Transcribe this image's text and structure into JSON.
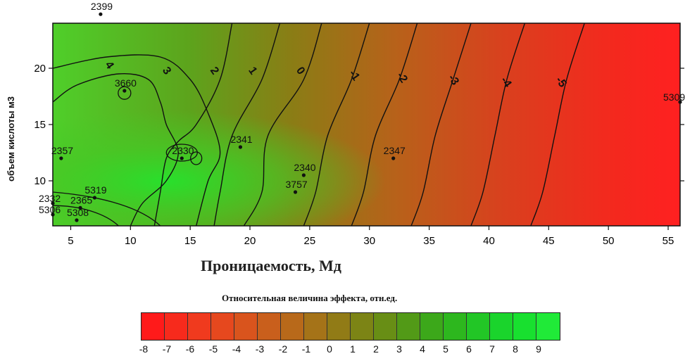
{
  "chart_data": {
    "type": "contour",
    "xlabel": "Проницаемость, Мд",
    "ylabel": "объем кислоты м3",
    "xlim": [
      3.5,
      56
    ],
    "ylim": [
      6,
      24
    ],
    "x_ticks": [
      "5",
      "10",
      "15",
      "20",
      "25",
      "30",
      "35",
      "40",
      "45",
      "50",
      "55"
    ],
    "y_ticks": [
      "10",
      "15",
      "20"
    ],
    "contours": [
      {
        "label": "-5",
        "points": [
          [
            48,
            24
          ],
          [
            46.5,
            19
          ],
          [
            45.5,
            14
          ],
          [
            44.5,
            9
          ],
          [
            43.5,
            6
          ]
        ]
      },
      {
        "label": "-4",
        "points": [
          [
            43,
            24
          ],
          [
            41.5,
            19
          ],
          [
            40.5,
            14
          ],
          [
            39.5,
            9
          ],
          [
            38.5,
            6
          ]
        ]
      },
      {
        "label": "-3",
        "points": [
          [
            38.5,
            24
          ],
          [
            37,
            19
          ],
          [
            35.5,
            14
          ],
          [
            34.5,
            9
          ],
          [
            33.5,
            6
          ]
        ]
      },
      {
        "label": "-2",
        "points": [
          [
            34,
            24
          ],
          [
            32.5,
            19
          ],
          [
            30.5,
            14
          ],
          [
            29.5,
            9
          ],
          [
            28.5,
            6
          ]
        ]
      },
      {
        "label": "-1",
        "points": [
          [
            30,
            24
          ],
          [
            28.5,
            19
          ],
          [
            26.5,
            14
          ],
          [
            25.5,
            9
          ],
          [
            24.5,
            6
          ]
        ]
      },
      {
        "label": "0",
        "points": [
          [
            26,
            24
          ],
          [
            24.5,
            19
          ],
          [
            21.5,
            14
          ],
          [
            21,
            9
          ],
          [
            19.5,
            6
          ]
        ]
      },
      {
        "label": "1",
        "points": [
          [
            22.5,
            24
          ],
          [
            21,
            19
          ],
          [
            18.5,
            14
          ],
          [
            17.5,
            9
          ],
          [
            17,
            6
          ]
        ]
      },
      {
        "label": "2",
        "points": [
          [
            18.5,
            24
          ],
          [
            17.5,
            19
          ],
          [
            15.5,
            15
          ],
          [
            14,
            13.5
          ],
          [
            13,
            12
          ],
          [
            12.5,
            9
          ],
          [
            12,
            6
          ]
        ]
      },
      {
        "label": "3",
        "points": [
          [
            3.5,
            20
          ],
          [
            8,
            21
          ],
          [
            12.5,
            21
          ],
          [
            15,
            19
          ],
          [
            16.5,
            16
          ],
          [
            17.5,
            12.5
          ],
          [
            16.5,
            10
          ],
          [
            15.5,
            6
          ]
        ]
      },
      {
        "label": "4",
        "points": [
          [
            3.5,
            17
          ],
          [
            5.5,
            18.5
          ],
          [
            9,
            19.5
          ],
          [
            11.5,
            19
          ],
          [
            12.5,
            17
          ],
          [
            13,
            15
          ],
          [
            14,
            12.5
          ],
          [
            13,
            10
          ],
          [
            11,
            8
          ],
          [
            10,
            6
          ]
        ]
      }
    ],
    "contour_labels": [
      {
        "text": "3",
        "x": 12.8,
        "y": 19.6
      },
      {
        "text": "2",
        "x": 16.8,
        "y": 19.6
      },
      {
        "text": "1",
        "x": 20.0,
        "y": 19.6
      },
      {
        "text": "0",
        "x": 24.0,
        "y": 19.6
      },
      {
        "text": "-1",
        "x": 28.5,
        "y": 19.2
      },
      {
        "text": "-2",
        "x": 32.5,
        "y": 19.0
      },
      {
        "text": "-3",
        "x": 36.8,
        "y": 18.8
      },
      {
        "text": "-4",
        "x": 41.2,
        "y": 18.6
      },
      {
        "text": "-5",
        "x": 45.8,
        "y": 18.6
      },
      {
        "text": "4",
        "x": 8.0,
        "y": 20.1
      }
    ],
    "wells": [
      {
        "label": "2399",
        "x": 7.5,
        "y": 24.8
      },
      {
        "label": "3660",
        "x": 9.5,
        "y": 18.0
      },
      {
        "label": "2357",
        "x": 4.2,
        "y": 12.0
      },
      {
        "label": "2341",
        "x": 19.2,
        "y": 13.0
      },
      {
        "label": "2330",
        "x": 14.3,
        "y": 12.0
      },
      {
        "label": "2340",
        "x": 24.5,
        "y": 10.5
      },
      {
        "label": "3757",
        "x": 23.8,
        "y": 9.0
      },
      {
        "label": "2347",
        "x": 32.0,
        "y": 12.0
      },
      {
        "label": "5319",
        "x": 7.0,
        "y": 8.5
      },
      {
        "label": "2332",
        "x": 3.5,
        "y": 8.0
      },
      {
        "label": "2365",
        "x": 5.8,
        "y": 7.6
      },
      {
        "label": "5306",
        "x": 3.5,
        "y": 7.0
      },
      {
        "label": "5308",
        "x": 5.5,
        "y": 6.5
      },
      {
        "label": "5309",
        "x": 56,
        "y": 17
      }
    ],
    "legend": {
      "title": "Относительная величина эффекта, отн.ед.",
      "ticks": [
        "-8",
        "-7",
        "-6",
        "-5",
        "-4",
        "-3",
        "-2",
        "-1",
        "0",
        "1",
        "2",
        "3",
        "4",
        "5",
        "6",
        "7",
        "8",
        "9"
      ],
      "colors": [
        "#ff1a1a",
        "#f72a1c",
        "#f03a1e",
        "#e6481e",
        "#d9541d",
        "#c95f1c",
        "#b8691a",
        "#a57318",
        "#917b16",
        "#7c8415",
        "#688e15",
        "#529a17",
        "#3ca81a",
        "#2db71e",
        "#22c626",
        "#1ad42c",
        "#18e02f",
        "#20ea38"
      ]
    }
  }
}
